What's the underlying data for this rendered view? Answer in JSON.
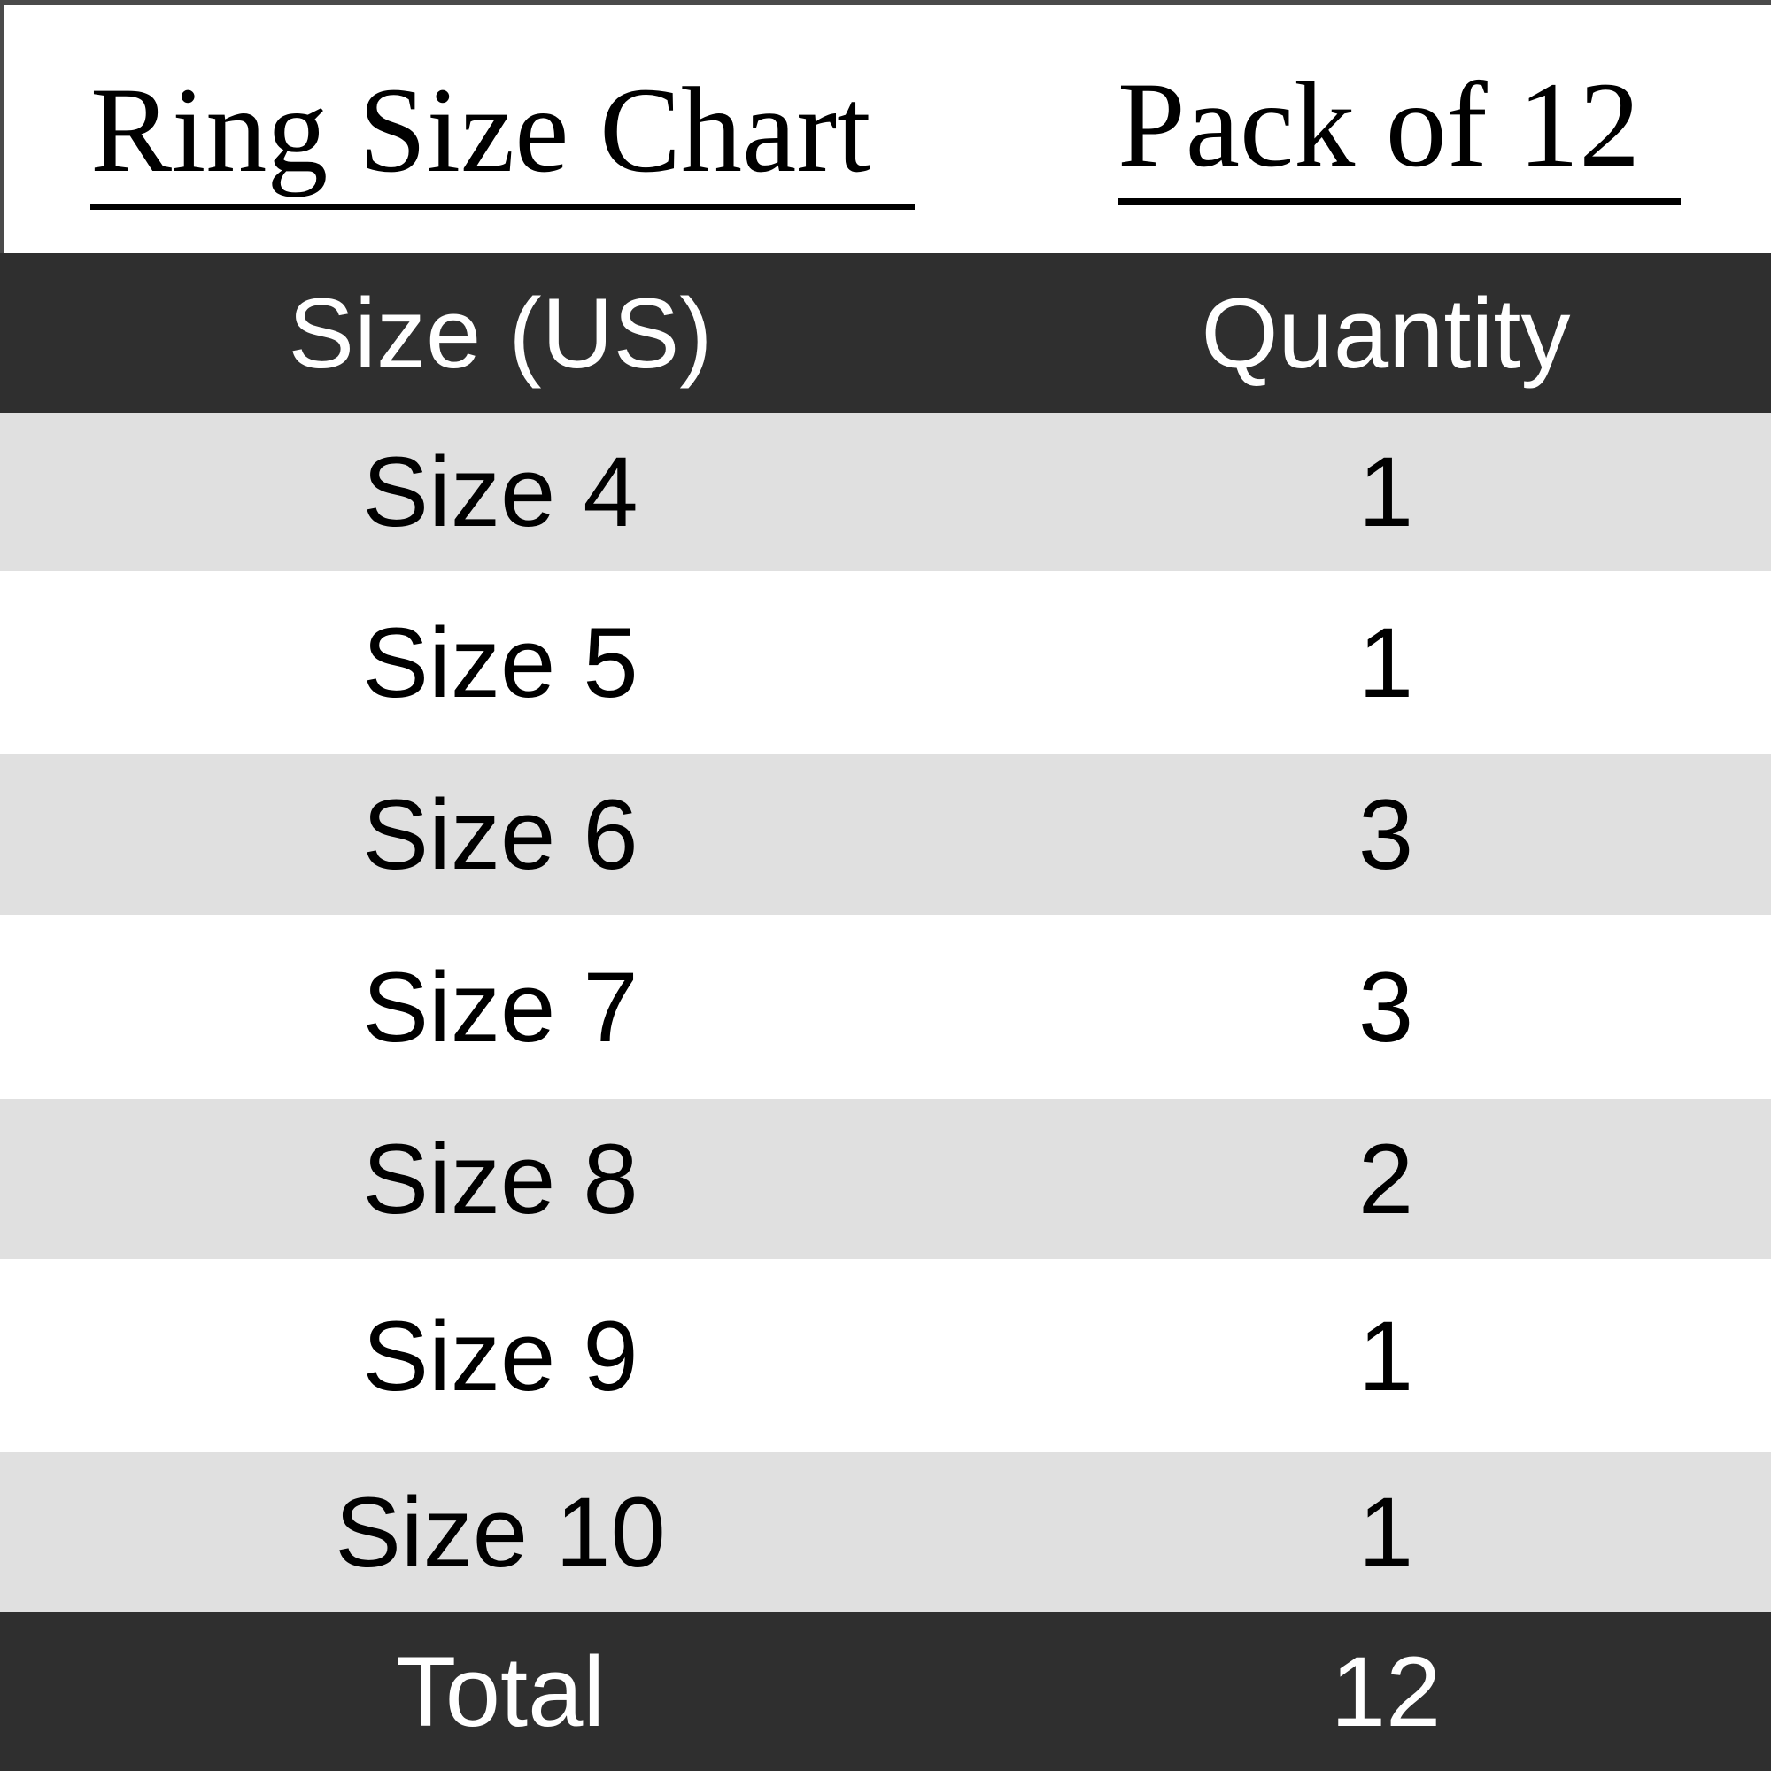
{
  "titles": {
    "left": "Ring Size Chart",
    "right": "Pack of 12"
  },
  "header": {
    "size": "Size (US)",
    "quantity": "Quantity"
  },
  "rows": [
    {
      "size": "Size 4",
      "quantity": "1"
    },
    {
      "size": "Size 5",
      "quantity": "1"
    },
    {
      "size": "Size 6",
      "quantity": "3"
    },
    {
      "size": "Size 7",
      "quantity": "3"
    },
    {
      "size": "Size 8",
      "quantity": "2"
    },
    {
      "size": "Size 9",
      "quantity": "1"
    },
    {
      "size": "Size 10",
      "quantity": "1"
    }
  ],
  "total": {
    "label": "Total",
    "quantity": "12"
  },
  "colors": {
    "header_bg": "#2f2f2f",
    "stripe": "#e0e0e0"
  }
}
